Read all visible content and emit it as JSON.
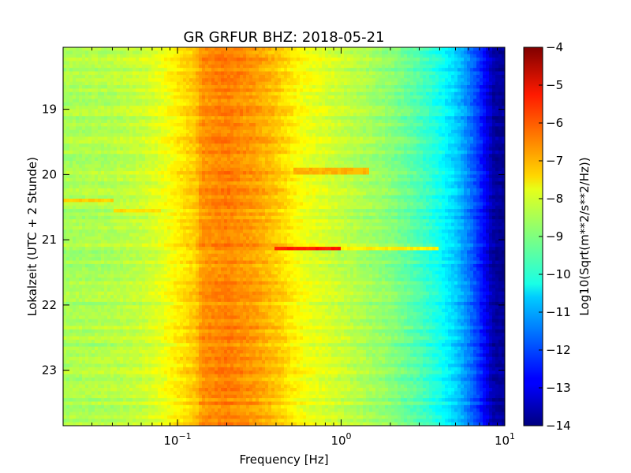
{
  "chart_data": {
    "type": "heatmap",
    "title": "GR GRFUR BHZ: 2018-05-21",
    "xlabel": "Frequency [Hz]",
    "ylabel": "Lokalzeit (UTC + 2 Stunde)",
    "x_scale": "log",
    "xlim": [
      0.02,
      10
    ],
    "ylim": [
      18.05,
      23.85
    ],
    "y_inverted": true,
    "x_ticks": [
      {
        "value": 0.1,
        "base": "10",
        "exp": "−1"
      },
      {
        "value": 1,
        "base": "10",
        "exp": "0"
      },
      {
        "value": 10,
        "base": "10",
        "exp": "1"
      }
    ],
    "y_ticks": [
      {
        "value": 19,
        "label": "19"
      },
      {
        "value": 20,
        "label": "20"
      },
      {
        "value": 21,
        "label": "21"
      },
      {
        "value": 22,
        "label": "22"
      },
      {
        "value": 23,
        "label": "23"
      }
    ],
    "colorbar": {
      "label": "Log10(Sqrt(m**2/s**2/Hz))",
      "range": [
        -14,
        -4
      ],
      "ticks": [
        "−4",
        "−5",
        "−6",
        "−7",
        "−8",
        "−9",
        "−10",
        "−11",
        "−12",
        "−13",
        "−14"
      ],
      "colormap": "jet"
    },
    "grid": false,
    "spectrum_profile": {
      "frequency_hz": [
        0.02,
        0.04,
        0.06,
        0.08,
        0.1,
        0.13,
        0.14,
        0.2,
        0.3,
        0.4,
        0.5,
        0.6,
        1,
        2,
        3,
        4,
        5,
        6,
        7,
        8,
        8.5,
        10
      ],
      "log10_amplitude": [
        -8.6,
        -8.5,
        -8.3,
        -8.0,
        -7.6,
        -7.2,
        -6.7,
        -6.5,
        -6.8,
        -7.2,
        -7.6,
        -7.9,
        -8.3,
        -8.9,
        -9.5,
        -10.1,
        -10.7,
        -11.5,
        -12.3,
        -13.2,
        -13.6,
        -13.8
      ]
    },
    "events": [
      {
        "time": 19.95,
        "f_min": 0.5,
        "f_max": 1.5,
        "log10_amplitude": -7.0
      },
      {
        "time": 21.13,
        "f_min": 0.4,
        "f_max": 1.0,
        "log10_amplitude": -5.5
      },
      {
        "time": 21.13,
        "f_min": 1.0,
        "f_max": 4.0,
        "log10_amplitude": -7.6
      },
      {
        "time": 20.4,
        "f_min": 0.02,
        "f_max": 0.04,
        "log10_amplitude": -7.3
      },
      {
        "time": 20.55,
        "f_min": 0.04,
        "f_max": 0.08,
        "log10_amplitude": -7.4
      }
    ]
  }
}
